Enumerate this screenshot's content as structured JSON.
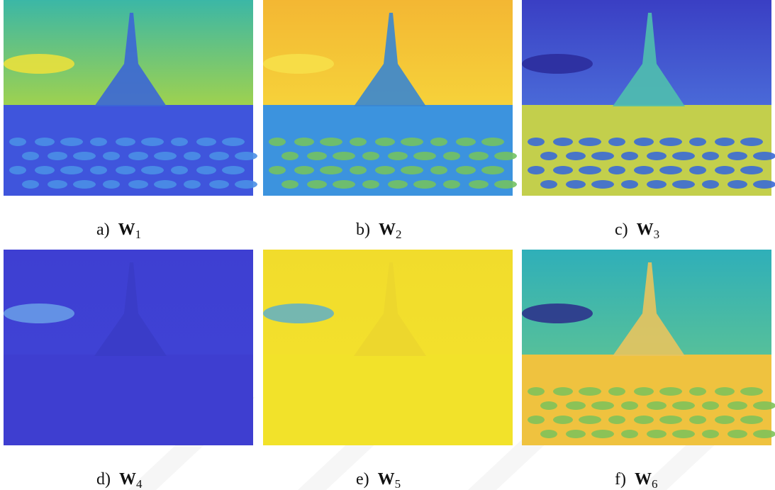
{
  "panels": [
    {
      "label": "a)",
      "symbol": "W",
      "subscript": "1"
    },
    {
      "label": "b)",
      "symbol": "W",
      "subscript": "2"
    },
    {
      "label": "c)",
      "symbol": "W",
      "subscript": "3"
    },
    {
      "label": "d)",
      "symbol": "W",
      "subscript": "4"
    },
    {
      "label": "e)",
      "symbol": "W",
      "subscript": "5"
    },
    {
      "label": "f)",
      "symbol": "W",
      "subscript": "6"
    }
  ]
}
